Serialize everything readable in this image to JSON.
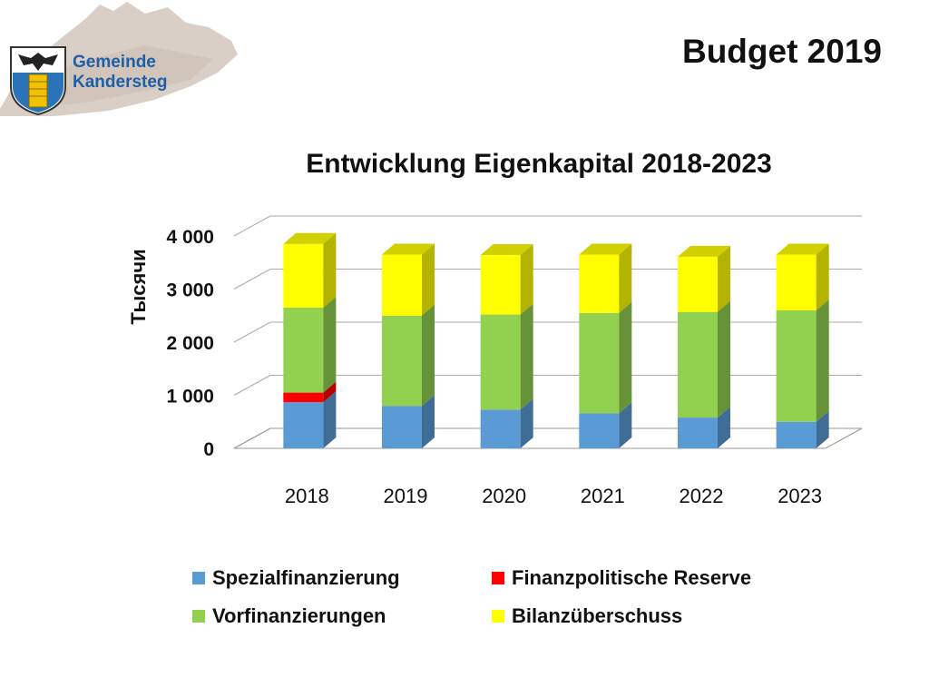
{
  "header": {
    "slide_title": "Budget 2019",
    "logo": {
      "line1": "Gemeinde",
      "line2": "Kandersteg",
      "icon": "eagle-coat-of-arms-icon"
    }
  },
  "chart_data": {
    "type": "bar",
    "stacked": true,
    "three_d": true,
    "title": "Entwicklung Eigenkapital 2018-2023",
    "ylabel": "Тысячи",
    "xlabel": "",
    "categories": [
      "2018",
      "2019",
      "2020",
      "2021",
      "2022",
      "2023"
    ],
    "y_ticks": [
      0,
      1000,
      2000,
      3000,
      4000
    ],
    "y_tick_labels": [
      "0",
      "1 000",
      "2 000",
      "3 000",
      "4 000"
    ],
    "ylim": [
      0,
      4000
    ],
    "grid": true,
    "legend_position": "bottom",
    "series": [
      {
        "name": "Spezialfinanzierung",
        "color": "#5b9bd5",
        "values": [
          870,
          800,
          730,
          660,
          580,
          500
        ]
      },
      {
        "name": "Finanzpolitische Reserve",
        "color": "#ff0000",
        "values": [
          180,
          0,
          0,
          0,
          0,
          0
        ]
      },
      {
        "name": "Vorfinanzierungen",
        "color": "#92d050",
        "values": [
          1600,
          1700,
          1790,
          1890,
          1990,
          2100
        ]
      },
      {
        "name": "Bilanzüberschuss",
        "color": "#ffff00",
        "values": [
          1200,
          1150,
          1120,
          1100,
          1040,
          1050
        ]
      }
    ]
  }
}
